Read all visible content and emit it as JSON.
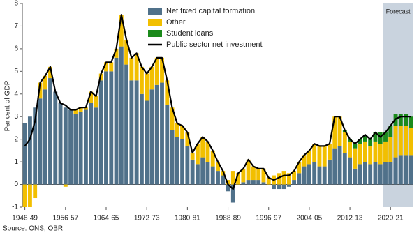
{
  "chart_data": {
    "type": "bar",
    "y_label": "Per cent of GDP",
    "source": "Source: ONS, OBR",
    "shaded_region": {
      "label": "Forecast",
      "from": 71,
      "color": "#c9d3de"
    },
    "categories": [
      "1948-49",
      null,
      null,
      null,
      null,
      null,
      null,
      null,
      "1956-57",
      null,
      null,
      null,
      null,
      null,
      null,
      null,
      "1964-65",
      null,
      null,
      null,
      null,
      null,
      null,
      null,
      "1972-73",
      null,
      null,
      null,
      null,
      null,
      null,
      null,
      "1980-81",
      null,
      null,
      null,
      null,
      null,
      null,
      null,
      "1988-89",
      null,
      null,
      null,
      null,
      null,
      null,
      null,
      "1996-97",
      null,
      null,
      null,
      null,
      null,
      null,
      null,
      "2004-05",
      null,
      null,
      null,
      null,
      null,
      null,
      null,
      "2012-13",
      null,
      null,
      null,
      null,
      null,
      null,
      null,
      "2020-21",
      null,
      null,
      null,
      null
    ],
    "series": [
      {
        "name": "Net fixed capital formation",
        "kind": "bar",
        "color": "#50718a",
        "values": [
          2.7,
          3.0,
          3.4,
          3.8,
          4.2,
          4.7,
          4.1,
          3.6,
          3.4,
          3.3,
          3.1,
          3.2,
          3.3,
          3.6,
          3.4,
          4.6,
          5.0,
          5.0,
          5.6,
          6.1,
          5.3,
          4.6,
          4.6,
          4.0,
          3.7,
          4.2,
          4.4,
          4.5,
          3.5,
          2.4,
          2.1,
          2.0,
          1.7,
          1.1,
          0.9,
          1.2,
          1.0,
          0.8,
          0.6,
          0.4,
          -0.3,
          -0.8,
          0.0,
          0.1,
          0.2,
          0.2,
          0.2,
          0.1,
          0.0,
          -0.2,
          -0.2,
          -0.2,
          -0.1,
          0.2,
          0.5,
          0.8,
          0.9,
          1.0,
          0.8,
          0.8,
          1.1,
          1.6,
          1.7,
          1.4,
          1.2,
          0.7,
          0.9,
          1.0,
          0.9,
          1.0,
          0.9,
          1.0,
          1.0,
          1.2,
          1.3,
          1.3,
          1.3
        ]
      },
      {
        "name": "Other",
        "kind": "bar",
        "color": "#f2bf00",
        "values": [
          -1.0,
          -1.0,
          -0.6,
          0.7,
          0.6,
          0.5,
          0.0,
          0.0,
          -0.1,
          0.0,
          0.2,
          0.2,
          0.1,
          0.5,
          0.5,
          0.3,
          0.4,
          0.4,
          0.4,
          1.4,
          1.1,
          1.0,
          1.2,
          1.2,
          1.2,
          1.0,
          1.2,
          1.1,
          1.1,
          1.0,
          0.6,
          0.6,
          0.6,
          0.3,
          0.9,
          0.9,
          0.9,
          0.7,
          0.4,
          0.2,
          0.2,
          0.6,
          0.5,
          0.6,
          0.9,
          0.6,
          0.5,
          0.6,
          0.3,
          0.4,
          0.5,
          0.6,
          0.5,
          0.4,
          0.5,
          0.5,
          0.6,
          0.8,
          0.9,
          0.9,
          0.7,
          1.4,
          1.3,
          0.9,
          0.7,
          0.9,
          0.9,
          0.9,
          0.8,
          0.9,
          0.9,
          0.9,
          1.1,
          1.4,
          1.3,
          1.3,
          1.2
        ]
      },
      {
        "name": "Student loans",
        "kind": "bar",
        "color": "#1b8a1b",
        "values": [
          0,
          0,
          0,
          0,
          0,
          0,
          0,
          0,
          0,
          0,
          0,
          0,
          0,
          0,
          0,
          0,
          0,
          0,
          0,
          0,
          0,
          0,
          0,
          0,
          0,
          0,
          0,
          0,
          0,
          0,
          0,
          0,
          0,
          0,
          0,
          0,
          0,
          0,
          0,
          0,
          0,
          0,
          0,
          0,
          0,
          0,
          0,
          0,
          0,
          0,
          0,
          0,
          0,
          0,
          0,
          0,
          0,
          0,
          0,
          0,
          0,
          0,
          0,
          0.1,
          0.1,
          0.2,
          0.2,
          0.3,
          0.3,
          0.4,
          0.5,
          0.4,
          0.5,
          0.5,
          0.5,
          0.5,
          0.5
        ]
      },
      {
        "name": "Public sector net investment",
        "kind": "line",
        "color": "#000000",
        "values": [
          1.7,
          2.0,
          2.8,
          4.5,
          4.8,
          5.2,
          4.1,
          3.6,
          3.5,
          3.3,
          3.3,
          3.4,
          3.4,
          4.1,
          3.9,
          4.9,
          5.4,
          5.4,
          6.0,
          7.5,
          6.4,
          5.6,
          5.8,
          5.2,
          4.9,
          5.2,
          5.6,
          5.6,
          4.6,
          3.4,
          2.7,
          2.6,
          2.3,
          1.4,
          1.8,
          2.1,
          1.9,
          1.5,
          1.0,
          0.6,
          0.0,
          -0.2,
          0.5,
          0.7,
          1.1,
          0.8,
          0.7,
          0.7,
          0.3,
          0.2,
          0.3,
          0.4,
          0.4,
          0.6,
          1.0,
          1.3,
          1.5,
          1.8,
          1.7,
          1.7,
          1.8,
          3.0,
          3.0,
          2.4,
          2.0,
          1.8,
          2.0,
          2.2,
          2.0,
          2.3,
          2.1,
          2.3,
          2.6,
          2.9,
          3.0,
          3.0,
          3.0
        ]
      }
    ],
    "ylim": [
      -1,
      8
    ],
    "yticks": [
      -1,
      0,
      1,
      2,
      3,
      4,
      5,
      6,
      7,
      8
    ],
    "legend": "top-left"
  }
}
